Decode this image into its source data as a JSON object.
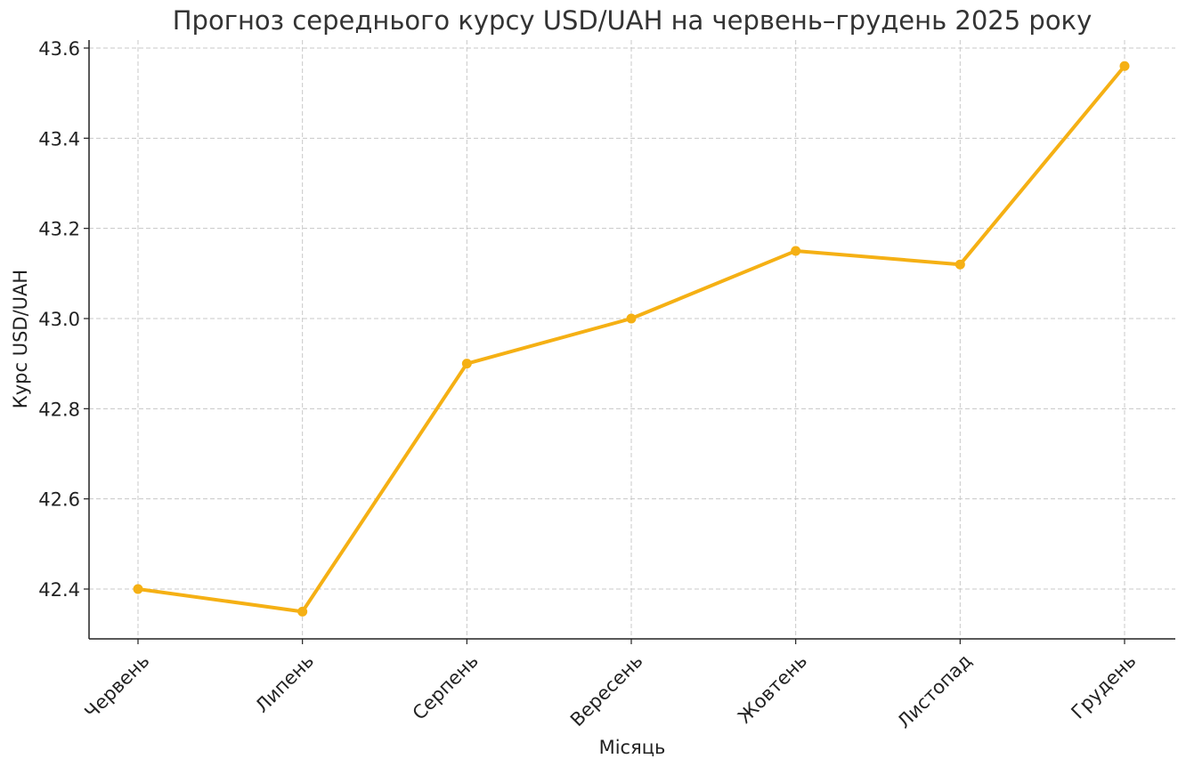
{
  "chart_data": {
    "type": "line",
    "title": "Прогноз середнього курсу USD/UAH на червень–грудень 2025 року",
    "xlabel": "Місяць",
    "ylabel": "Курс USD/UAH",
    "categories": [
      "Червень",
      "Липень",
      "Серпень",
      "Вересень",
      "Жовтень",
      "Листопад",
      "Грудень"
    ],
    "series": [
      {
        "values": [
          42.4,
          42.35,
          42.9,
          43.0,
          43.15,
          43.12,
          43.56
        ],
        "color": "#f5b014"
      }
    ],
    "yticks": [
      "42.4",
      "42.6",
      "42.8",
      "43.0",
      "43.2",
      "43.4",
      "43.6"
    ],
    "ylim": [
      42.29,
      43.62
    ],
    "grid": true,
    "marker": "circle"
  }
}
